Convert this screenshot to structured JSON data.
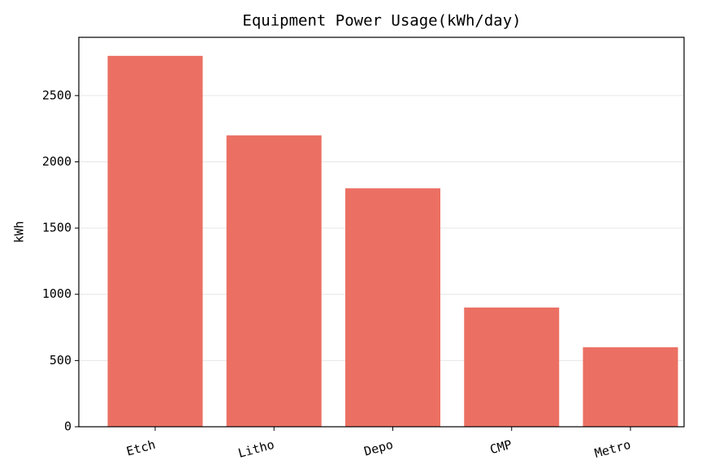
{
  "chart_data": {
    "type": "bar",
    "title": "Equipment Power Usage(kWh/day)",
    "y_label": "kWh",
    "categories": [
      "Etch",
      "Litho",
      "Depo",
      "CMP",
      "Metro"
    ],
    "values": [
      2800,
      2200,
      1800,
      900,
      600
    ],
    "color": "#eb7063",
    "ylim": [
      0,
      2940
    ],
    "yticks": [
      0,
      500,
      1000,
      1500,
      2000,
      2500
    ],
    "grid": true
  }
}
